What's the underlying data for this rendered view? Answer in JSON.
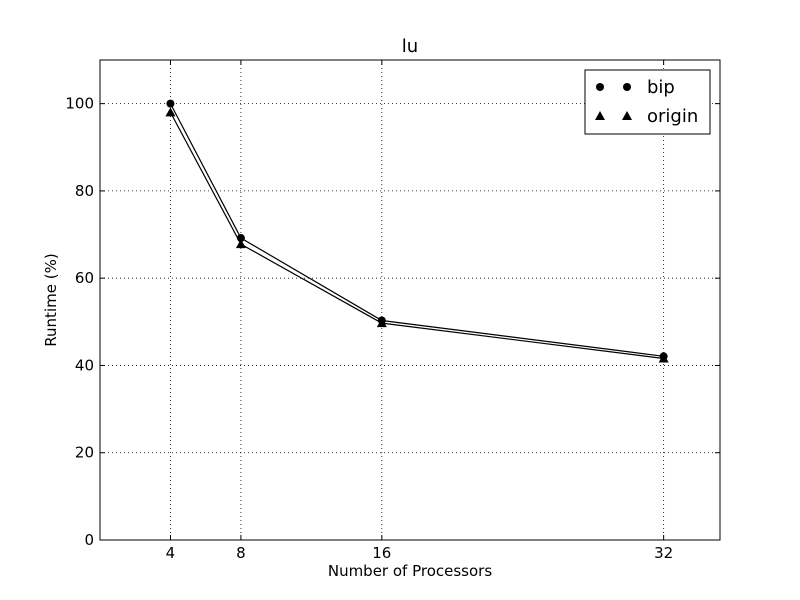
{
  "chart_data": {
    "type": "line",
    "title": "lu",
    "xlabel": "Number of Processors",
    "ylabel": "Runtime (%)",
    "x": [
      4,
      8,
      16,
      32
    ],
    "xticks": [
      4,
      8,
      16,
      32
    ],
    "xlim": [
      0,
      35.2
    ],
    "yticks": [
      0,
      20,
      40,
      60,
      80,
      100
    ],
    "ylim": [
      0,
      110
    ],
    "grid": true,
    "legend_position": "top-right",
    "series": [
      {
        "name": "bip",
        "marker": "circle",
        "color": "#000000",
        "values": [
          100,
          69.2,
          50.3,
          42.1
        ]
      },
      {
        "name": "origin",
        "marker": "triangle",
        "color": "#000000",
        "values": [
          98,
          67.8,
          49.7,
          41.6
        ]
      }
    ]
  }
}
